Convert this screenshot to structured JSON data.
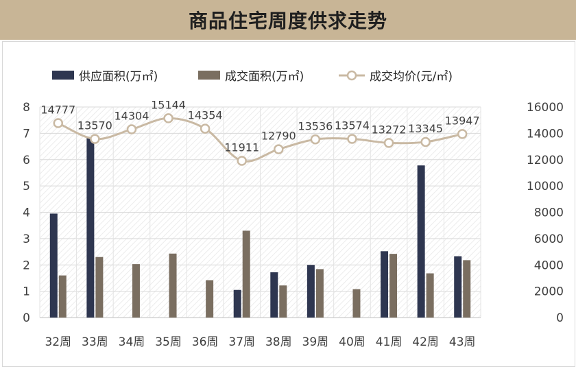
{
  "chart_data": {
    "type": "bar",
    "title": "商品住宅周度供求走势",
    "categories": [
      "32周",
      "33周",
      "34周",
      "35周",
      "36周",
      "37周",
      "38周",
      "39周",
      "40周",
      "41周",
      "42周",
      "43周"
    ],
    "series": [
      {
        "name": "供应面积(万㎡)",
        "type": "bar",
        "axis": "left",
        "color": "#2e3650",
        "values": [
          3.95,
          6.85,
          null,
          null,
          null,
          1.05,
          1.72,
          2.0,
          null,
          2.52,
          5.78,
          2.33
        ]
      },
      {
        "name": "成交面积(万㎡)",
        "type": "bar",
        "axis": "left",
        "color": "#7a6e60",
        "values": [
          1.6,
          2.3,
          2.03,
          2.43,
          1.42,
          3.3,
          1.22,
          1.84,
          1.08,
          2.42,
          1.68,
          2.18
        ]
      },
      {
        "name": "成交均价(元/㎡)",
        "type": "line",
        "axis": "right",
        "color": "#c9b9a3",
        "values": [
          14777,
          13570,
          14304,
          15144,
          14354,
          11911,
          12790,
          13536,
          13574,
          13272,
          13345,
          13947
        ],
        "labels": [
          "14777",
          "13570",
          "14304",
          "15144",
          "14354",
          "11911",
          "12790",
          "13536",
          "13574",
          "13272",
          "13345",
          "13947"
        ]
      }
    ],
    "y_left": {
      "min": 0,
      "max": 8,
      "ticks": [
        "0",
        "1",
        "2",
        "3",
        "4",
        "5",
        "6",
        "7",
        "8"
      ]
    },
    "y_right": {
      "min": 0,
      "max": 16000,
      "ticks": [
        "0",
        "2000",
        "4000",
        "6000",
        "8000",
        "10000",
        "12000",
        "14000",
        "16000"
      ]
    },
    "grid": true,
    "legend_position": "top-left"
  }
}
